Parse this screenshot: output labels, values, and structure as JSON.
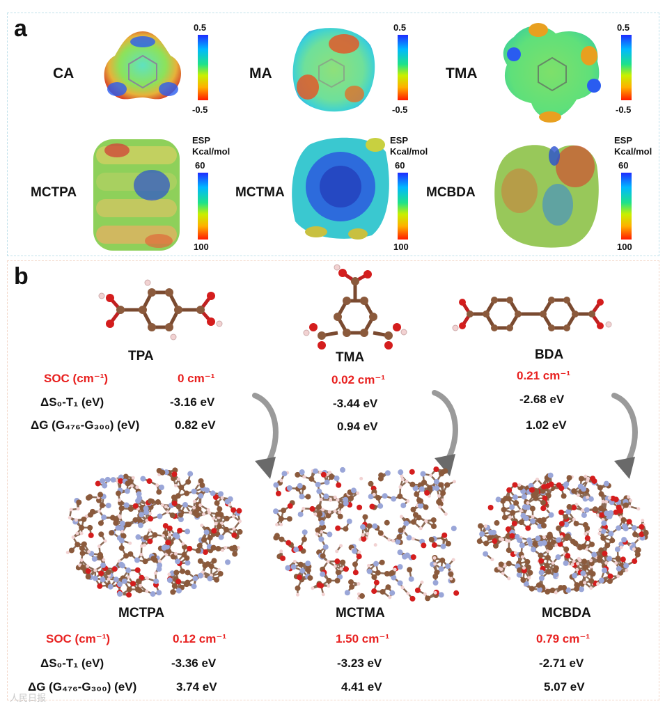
{
  "panel_a": {
    "label": "a",
    "top_row": [
      {
        "name": "CA",
        "scale_max": "0.5",
        "scale_min": "-0.5"
      },
      {
        "name": "MA",
        "scale_max": "0.5",
        "scale_min": "-0.5"
      },
      {
        "name": "TMA",
        "scale_max": "0.5",
        "scale_min": "-0.5"
      }
    ],
    "bottom_row": [
      {
        "name": "MCTPA",
        "esp_label": "ESP",
        "unit_label": "Kcal/mol",
        "scale_top": "60",
        "scale_bottom": "100"
      },
      {
        "name": "MCTMA",
        "esp_label": "ESP",
        "unit_label": "Kcal/mol",
        "scale_top": "60",
        "scale_bottom": "100"
      },
      {
        "name": "MCBDA",
        "esp_label": "ESP",
        "unit_label": "Kcal/mol",
        "scale_top": "60",
        "scale_bottom": "100"
      }
    ]
  },
  "panel_b": {
    "label": "b",
    "row_labels": {
      "soc": "SOC (cm⁻¹)",
      "ds": "ΔS₀-T₁ (eV)",
      "dg": "ΔG (G₄₇₆-G₃₀₀) (eV)"
    },
    "monomers": [
      {
        "name": "TPA",
        "soc": "0 cm⁻¹",
        "ds": "-3.16 eV",
        "dg": "0.82 eV"
      },
      {
        "name": "TMA",
        "soc": "0.02 cm⁻¹",
        "ds": "-3.44 eV",
        "dg": "0.94 eV"
      },
      {
        "name": "BDA",
        "soc": "0.21 cm⁻¹",
        "ds": "-2.68 eV",
        "dg": "1.02 eV"
      }
    ],
    "clusters": [
      {
        "name": "MCTPA",
        "soc": "0.12 cm⁻¹",
        "ds": "-3.36 eV",
        "dg": "3.74 eV"
      },
      {
        "name": "MCTMA",
        "soc": "1.50 cm⁻¹",
        "ds": "-3.23 eV",
        "dg": "4.41 eV"
      },
      {
        "name": "MCBDA",
        "soc": "0.79 cm⁻¹",
        "ds": "-2.71 eV",
        "dg": "5.07 eV"
      }
    ]
  },
  "watermark": "人民日报",
  "colors": {
    "red_text": "#e8201f",
    "carbon": "#8b5a3c",
    "oxygen": "#d41d1d",
    "hydrogen": "#f2d2d2",
    "nitrogen": "#9aa6d8"
  }
}
